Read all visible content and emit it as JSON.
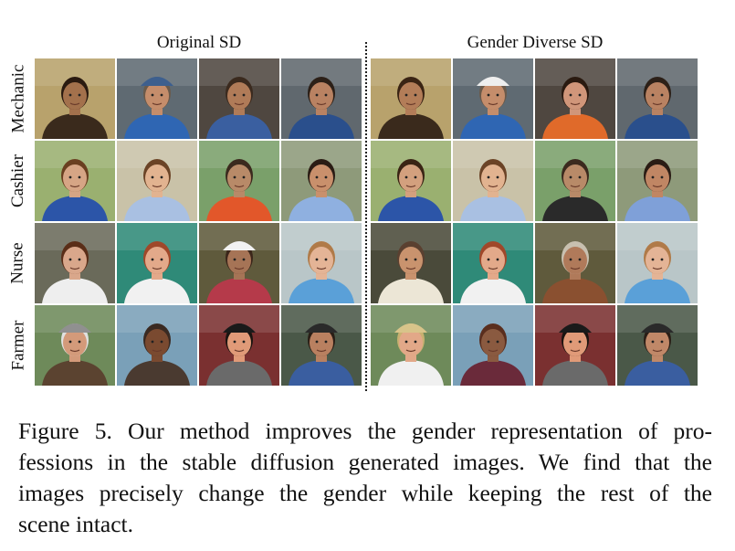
{
  "figure": {
    "column_titles": [
      "Original SD",
      "Gender Diverse SD"
    ],
    "rows": [
      "Mechanic",
      "Cashier",
      "Nurse",
      "Farmer"
    ],
    "caption_lines": [
      "Figure 5. Our method improves the gender representation of pro-",
      "fessions in the stable diffusion generated images. We find that the",
      "images precisely change the gender while keeping the rest of the",
      "scene intact."
    ]
  },
  "photos": {
    "left": [
      [
        {
          "bg": "#b8a26c",
          "skin": "#a3714c",
          "hair": "#2a1a10",
          "shirt": "#3a2a1c",
          "hat": ""
        },
        {
          "bg": "#5f6a72",
          "skin": "#c58d6b",
          "hair": "#6b5a4a",
          "shirt": "#2f66b3",
          "hat": "#3d5f8e"
        },
        {
          "bg": "#4f4740",
          "skin": "#b07b58",
          "hair": "#3b2a1e",
          "shirt": "#3a5fa0",
          "hat": ""
        },
        {
          "bg": "#60686e",
          "skin": "#b98262",
          "hair": "#2c2018",
          "shirt": "#2a4f8c",
          "hat": ""
        }
      ],
      [
        {
          "bg": "#9ab070",
          "skin": "#d6a585",
          "hair": "#6a3f20",
          "shirt": "#2c55a8",
          "hat": ""
        },
        {
          "bg": "#c9c2a8",
          "skin": "#e2b390",
          "hair": "#6b4326",
          "shirt": "#a9c0e2",
          "hat": ""
        },
        {
          "bg": "#7aa06a",
          "skin": "#b88a68",
          "hair": "#3b2a1e",
          "shirt": "#e2572a",
          "hat": ""
        },
        {
          "bg": "#8e9a7a",
          "skin": "#c9906c",
          "hair": "#2a1c14",
          "shirt": "#8fb0e0",
          "hat": ""
        }
      ],
      [
        {
          "bg": "#6a6a5a",
          "skin": "#d9a78b",
          "hair": "#5a2e18",
          "shirt": "#eeeeee",
          "hat": ""
        },
        {
          "bg": "#2f8a78",
          "skin": "#e3a98a",
          "hair": "#a0482a",
          "shirt": "#f1f1f1",
          "hat": ""
        },
        {
          "bg": "#5f5a3c",
          "skin": "#a67456",
          "hair": "#3b261a",
          "shirt": "#b53a4a",
          "hat": "#f2f2f2"
        },
        {
          "bg": "#b9c6c8",
          "skin": "#e4b496",
          "hair": "#b07a48",
          "shirt": "#5aa0d8",
          "hat": ""
        }
      ],
      [
        {
          "bg": "#6e8a5a",
          "skin": "#d39a7a",
          "hair": "#e0e0e0",
          "shirt": "#5b4330",
          "hat": "#909090"
        },
        {
          "bg": "#7aa0b8",
          "skin": "#7a4a30",
          "hair": "#3a2a22",
          "shirt": "#4a3a30",
          "hat": ""
        },
        {
          "bg": "#7a3030",
          "skin": "#e09a78",
          "hair": "#1a1410",
          "shirt": "#6a6a6a",
          "hat": "#1a1a1a"
        },
        {
          "bg": "#4a5848",
          "skin": "#b98060",
          "hair": "#2a1e16",
          "shirt": "#3a5ea0",
          "hat": "#2a2a2a"
        }
      ]
    ],
    "right": [
      [
        {
          "bg": "#b8a26c",
          "skin": "#b37d58",
          "hair": "#3a2414",
          "shirt": "#3a2a1c",
          "hat": ""
        },
        {
          "bg": "#5f6a72",
          "skin": "#c58d6b",
          "hair": "#6b5a4a",
          "shirt": "#2f66b3",
          "hat": "#eeeeee"
        },
        {
          "bg": "#4f4740",
          "skin": "#d0967a",
          "hair": "#2a1a10",
          "shirt": "#e06a2a",
          "hat": ""
        },
        {
          "bg": "#60686e",
          "skin": "#b98262",
          "hair": "#2c2018",
          "shirt": "#2a4f8c",
          "hat": ""
        }
      ],
      [
        {
          "bg": "#9ab070",
          "skin": "#d3a07e",
          "hair": "#3a2414",
          "shirt": "#2c55a8",
          "hat": ""
        },
        {
          "bg": "#c9c2a8",
          "skin": "#e2b390",
          "hair": "#6b4326",
          "shirt": "#a9c0e2",
          "hat": ""
        },
        {
          "bg": "#7aa06a",
          "skin": "#b88a68",
          "hair": "#3b2a1e",
          "shirt": "#2a2a2a",
          "hat": ""
        },
        {
          "bg": "#8e9a7a",
          "skin": "#c08664",
          "hair": "#2a1c14",
          "shirt": "#7fa0d8",
          "hat": ""
        }
      ],
      [
        {
          "bg": "#4a4a3a",
          "skin": "#c9936e",
          "hair": "#5a4030",
          "shirt": "#ece6d6",
          "hat": ""
        },
        {
          "bg": "#2f8a78",
          "skin": "#e3a98a",
          "hair": "#a0482a",
          "shirt": "#f1f1f1",
          "hat": ""
        },
        {
          "bg": "#5f5a3c",
          "skin": "#b07a5a",
          "hair": "#c8c0b0",
          "shirt": "#8a5030",
          "hat": ""
        },
        {
          "bg": "#b9c6c8",
          "skin": "#e4b496",
          "hair": "#b07a48",
          "shirt": "#5aa0d8",
          "hat": ""
        }
      ],
      [
        {
          "bg": "#6e8a5a",
          "skin": "#e2a888",
          "hair": "#c8b070",
          "shirt": "#f0f0f0",
          "hat": "#d8c48a"
        },
        {
          "bg": "#7aa0b8",
          "skin": "#8a5a40",
          "hair": "#5a2e1e",
          "shirt": "#6a2a3a",
          "hat": ""
        },
        {
          "bg": "#7a3030",
          "skin": "#e09a78",
          "hair": "#1a1410",
          "shirt": "#6a6a6a",
          "hat": "#1a1a1a"
        },
        {
          "bg": "#4a5848",
          "skin": "#c08868",
          "hair": "#2a1e16",
          "shirt": "#3a5ea0",
          "hat": "#2a2a2a"
        }
      ]
    ]
  }
}
